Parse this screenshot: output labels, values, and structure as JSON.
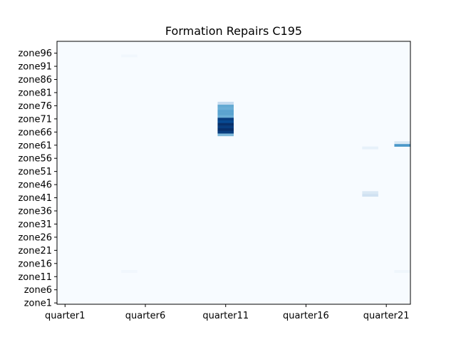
{
  "chart_data": {
    "type": "heatmap",
    "title": "Formation Repairs C195",
    "xlabel": "",
    "ylabel": "",
    "colormap": "Blues",
    "colormap_stops": [
      "#f7fbff",
      "#deebf7",
      "#c6dbef",
      "#9ecae1",
      "#6baed6",
      "#4292c6",
      "#2171b5",
      "#08519c",
      "#08306b"
    ],
    "x_count": 22,
    "y_count": 100,
    "x_categories_prefix": "quarter",
    "y_categories_prefix": "zone",
    "x_tick_labels": [
      "quarter1",
      "quarter6",
      "quarter11",
      "quarter16",
      "quarter21"
    ],
    "y_tick_labels": [
      "zone1",
      "zone6",
      "zone11",
      "zone16",
      "zone21",
      "zone26",
      "zone31",
      "zone36",
      "zone41",
      "zone46",
      "zone51",
      "zone56",
      "zone61",
      "zone66",
      "zone71",
      "zone76",
      "zone81",
      "zone86",
      "zone91",
      "zone96"
    ],
    "grid": false,
    "value_range": [
      0,
      1
    ],
    "nonzero_cells": [
      {
        "x": "quarter5",
        "y": "zone13",
        "value": 0.03
      },
      {
        "x": "quarter5",
        "y": "zone95",
        "value": 0.03
      },
      {
        "x": "quarter11",
        "y": "zone65",
        "value": 0.45
      },
      {
        "x": "quarter11",
        "y": "zone66",
        "value": 0.95
      },
      {
        "x": "quarter11",
        "y": "zone67",
        "value": 1.0
      },
      {
        "x": "quarter11",
        "y": "zone68",
        "value": 0.95
      },
      {
        "x": "quarter11",
        "y": "zone69",
        "value": 1.0
      },
      {
        "x": "quarter11",
        "y": "zone70",
        "value": 0.9
      },
      {
        "x": "quarter11",
        "y": "zone71",
        "value": 0.95
      },
      {
        "x": "quarter11",
        "y": "zone72",
        "value": 0.5
      },
      {
        "x": "quarter11",
        "y": "zone73",
        "value": 0.55
      },
      {
        "x": "quarter11",
        "y": "zone74",
        "value": 0.55
      },
      {
        "x": "quarter11",
        "y": "zone75",
        "value": 0.5
      },
      {
        "x": "quarter11",
        "y": "zone76",
        "value": 0.52
      },
      {
        "x": "quarter11",
        "y": "zone77",
        "value": 0.25
      },
      {
        "x": "quarter20",
        "y": "zone42",
        "value": 0.2
      },
      {
        "x": "quarter20",
        "y": "zone43",
        "value": 0.15
      },
      {
        "x": "quarter20",
        "y": "zone60",
        "value": 0.08
      },
      {
        "x": "quarter22",
        "y": "zone13",
        "value": 0.04
      },
      {
        "x": "quarter22",
        "y": "zone61",
        "value": 0.6
      },
      {
        "x": "quarter22",
        "y": "zone62",
        "value": 0.15
      }
    ]
  }
}
